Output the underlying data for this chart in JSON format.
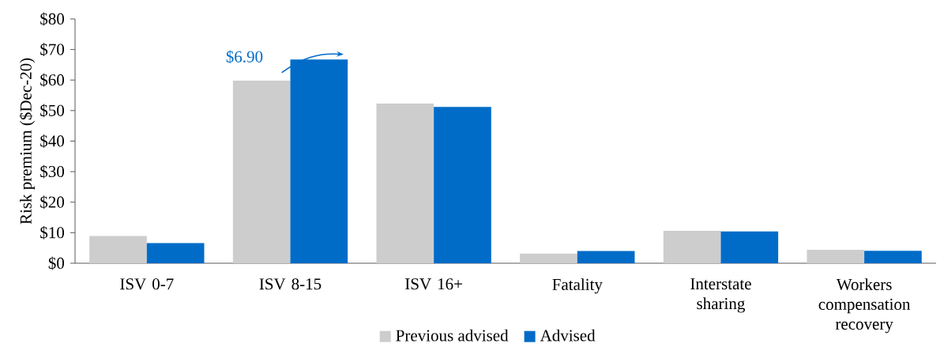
{
  "chart_data": {
    "type": "bar",
    "ylabel": "Risk premium ($Dec-20)",
    "categories": [
      "ISV 0-7",
      "ISV 8-15",
      "ISV 16+",
      "Fatality",
      "Interstate sharing",
      "Workers compensation recovery"
    ],
    "series": [
      {
        "name": "Previous advised",
        "color": "#cecdce",
        "values": [
          8.9,
          59.8,
          52.3,
          3.2,
          10.6,
          4.4
        ]
      },
      {
        "name": "Advised",
        "color": "#006cc8",
        "values": [
          6.6,
          66.7,
          51.2,
          4.0,
          10.4,
          4.1
        ]
      }
    ],
    "ylim": [
      0,
      80
    ],
    "yticks": [
      {
        "value": 0,
        "label": "$0"
      },
      {
        "value": 10,
        "label": "$10"
      },
      {
        "value": 20,
        "label": "$20"
      },
      {
        "value": 30,
        "label": "$30"
      },
      {
        "value": 40,
        "label": "$40"
      },
      {
        "value": 50,
        "label": "$50"
      },
      {
        "value": 60,
        "label": "$60"
      },
      {
        "value": 70,
        "label": "$70"
      },
      {
        "value": 80,
        "label": "$80"
      }
    ],
    "annotations": [
      "$6.90"
    ],
    "grid": false,
    "legend": "bottom"
  }
}
